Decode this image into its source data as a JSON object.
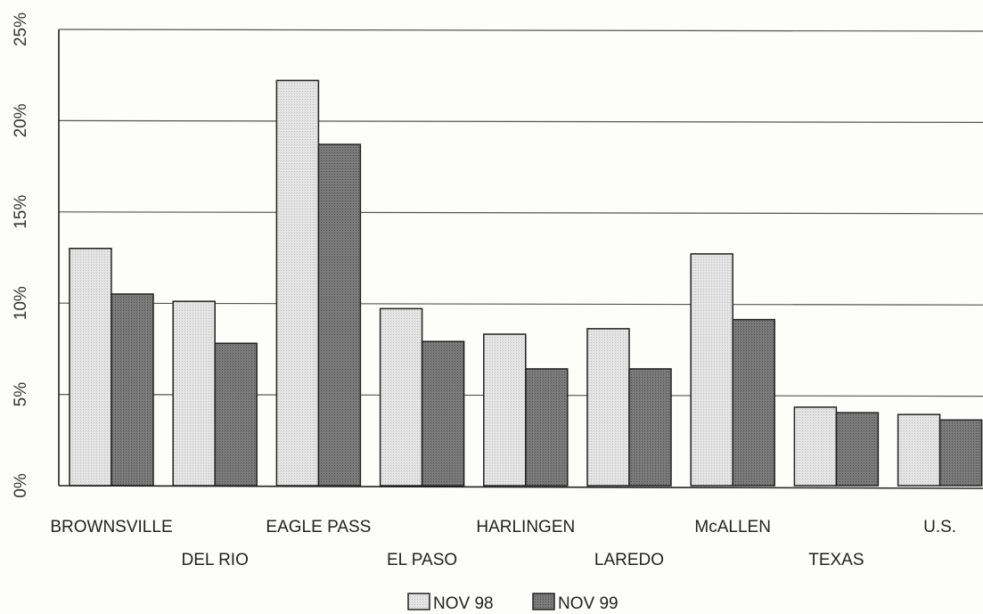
{
  "chart_data": {
    "type": "bar",
    "categories": [
      "BROWNSVILLE",
      "DEL RIO",
      "EAGLE PASS",
      "EL PASO",
      "HARLINGEN",
      "LAREDO",
      "McALLEN",
      "TEXAS",
      "U.S."
    ],
    "series": [
      {
        "name": "NOV 98",
        "values": [
          13.0,
          10.1,
          22.2,
          9.7,
          8.3,
          8.6,
          12.7,
          4.3,
          3.9
        ],
        "color": "#e4e4e4"
      },
      {
        "name": "NOV 99",
        "values": [
          10.5,
          7.8,
          18.7,
          7.9,
          6.4,
          6.4,
          9.1,
          4.0,
          3.6
        ],
        "color": "#7a7a7a"
      }
    ],
    "y_ticks": [
      "0%",
      "5%",
      "10%",
      "15%",
      "20%",
      "25%"
    ],
    "ylim": [
      0,
      25
    ],
    "grid": true,
    "legend_position": "bottom-center",
    "title": "",
    "xlabel": "",
    "ylabel": ""
  }
}
